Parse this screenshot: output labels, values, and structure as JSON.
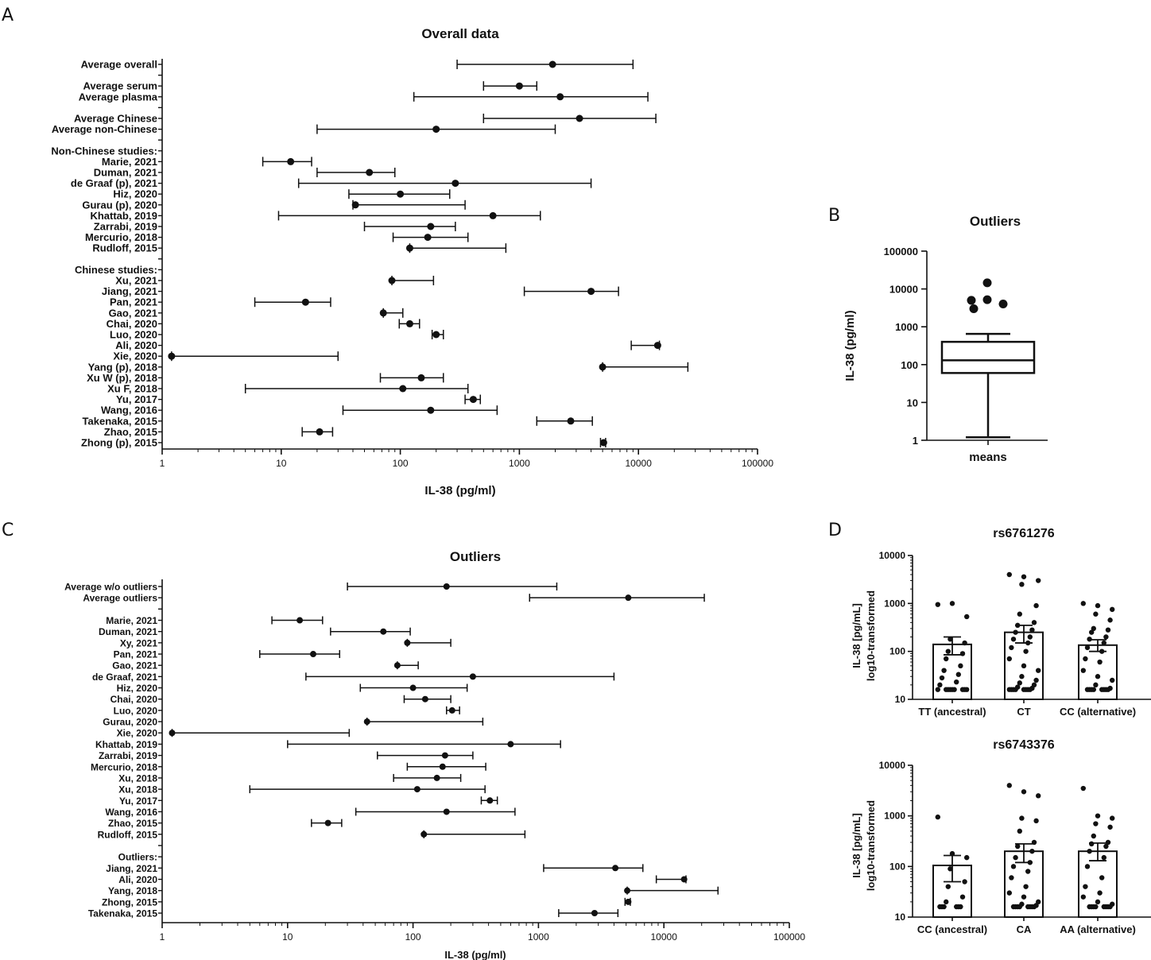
{
  "colors": {
    "ink": "#111111",
    "background": "#ffffff"
  },
  "panel_letters": [
    "A",
    "B",
    "C",
    "D"
  ],
  "chart_data": [
    {
      "id": "A",
      "type": "forest",
      "title": "Overall data",
      "xlabel": "IL-38 (pg/ml)",
      "xscale": "log",
      "xlim": [
        1,
        100000
      ],
      "xticks": [
        "1",
        "10",
        "100",
        "1000",
        "10000",
        "100000"
      ],
      "rows": [
        {
          "label": "Average overall",
          "mean": 1900,
          "lo": 300,
          "hi": 9000
        },
        {
          "label": "",
          "blank": true
        },
        {
          "label": "Average serum",
          "mean": 1000,
          "lo": 500,
          "hi": 1400
        },
        {
          "label": "Average plasma",
          "mean": 2200,
          "lo": 130,
          "hi": 12000
        },
        {
          "label": "",
          "blank": true
        },
        {
          "label": "Average Chinese",
          "mean": 3200,
          "lo": 500,
          "hi": 14000
        },
        {
          "label": "Average non-Chinese",
          "mean": 200,
          "lo": 20,
          "hi": 2000
        },
        {
          "label": "",
          "blank": true
        },
        {
          "label": "Non-Chinese studies:",
          "header": true
        },
        {
          "label": "Marie, 2021",
          "mean": 12,
          "lo": 7,
          "hi": 18
        },
        {
          "label": "Duman, 2021",
          "mean": 55,
          "lo": 20,
          "hi": 90
        },
        {
          "label": "de Graaf (p), 2021",
          "mean": 290,
          "lo": 14,
          "hi": 4000
        },
        {
          "label": "Hiz, 2020",
          "mean": 100,
          "lo": 37,
          "hi": 260
        },
        {
          "label": "Gurau (p), 2020",
          "mean": 42,
          "lo": 40,
          "hi": 350
        },
        {
          "label": "Khattab, 2019",
          "mean": 600,
          "lo": 9.5,
          "hi": 1500
        },
        {
          "label": "Zarrabi, 2019",
          "mean": 180,
          "lo": 50,
          "hi": 290
        },
        {
          "label": "Mercurio, 2018",
          "mean": 170,
          "lo": 87,
          "hi": 370
        },
        {
          "label": "Rudloff, 2015",
          "mean": 120,
          "lo": 120,
          "hi": 770
        },
        {
          "label": "",
          "blank": true
        },
        {
          "label": "Chinese studies:",
          "header": true
        },
        {
          "label": "Xu, 2021",
          "mean": 85,
          "lo": 85,
          "hi": 190
        },
        {
          "label": "Jiang, 2021",
          "mean": 4000,
          "lo": 1100,
          "hi": 6800
        },
        {
          "label": "Pan, 2021",
          "mean": 16,
          "lo": 6,
          "hi": 26
        },
        {
          "label": "Gao, 2021",
          "mean": 72,
          "lo": 72,
          "hi": 105
        },
        {
          "label": "Chai, 2020",
          "mean": 120,
          "lo": 98,
          "hi": 145
        },
        {
          "label": "Luo, 2020",
          "mean": 200,
          "lo": 185,
          "hi": 230
        },
        {
          "label": "Ali, 2020",
          "mean": 14500,
          "lo": 8700,
          "hi": 15000
        },
        {
          "label": "Xie, 2020",
          "mean": 1.2,
          "lo": 1.2,
          "hi": 30
        },
        {
          "label": "Yang (p), 2018",
          "mean": 5000,
          "lo": 5000,
          "hi": 26000
        },
        {
          "label": "Xu W (p), 2018",
          "mean": 150,
          "lo": 68,
          "hi": 230
        },
        {
          "label": "Xu F, 2018",
          "mean": 105,
          "lo": 5,
          "hi": 370
        },
        {
          "label": "Yu, 2017",
          "mean": 410,
          "lo": 350,
          "hi": 470
        },
        {
          "label": "Wang, 2016",
          "mean": 180,
          "lo": 33,
          "hi": 650
        },
        {
          "label": "Takenaka, 2015",
          "mean": 2700,
          "lo": 1400,
          "hi": 4100
        },
        {
          "label": "Zhao, 2015",
          "mean": 21,
          "lo": 15,
          "hi": 27
        },
        {
          "label": "Zhong (p), 2015",
          "mean": 5100,
          "lo": 4800,
          "hi": 5300
        }
      ]
    },
    {
      "id": "B",
      "type": "boxplot",
      "title": "Outliers",
      "ylabel": "IL-38 (pg/ml)",
      "yscale": "log",
      "ylim": [
        1,
        100000
      ],
      "yticks": [
        "1",
        "10",
        "100",
        "1000",
        "10000",
        "100000"
      ],
      "category": "means",
      "whisker_low": 1.2,
      "q1": 60,
      "median": 130,
      "q3": 400,
      "whisker_high": 650,
      "outliers": [
        5000,
        3000,
        5200,
        14500,
        4000
      ]
    },
    {
      "id": "C",
      "type": "forest",
      "title": "Outliers",
      "xlabel": "IL-38 (pg/ml)",
      "xscale": "log",
      "xlim": [
        1,
        100000
      ],
      "xticks": [
        "1",
        "10",
        "100",
        "1000",
        "10000",
        "100000"
      ],
      "rows": [
        {
          "label": "Average w/o outliers",
          "mean": 185,
          "lo": 30,
          "hi": 1400
        },
        {
          "label": "Average outliers",
          "mean": 5200,
          "lo": 850,
          "hi": 21000
        },
        {
          "label": "",
          "blank": true
        },
        {
          "label": "Marie, 2021",
          "mean": 12.5,
          "lo": 7.5,
          "hi": 19
        },
        {
          "label": "Duman, 2021",
          "mean": 58,
          "lo": 22,
          "hi": 95
        },
        {
          "label": "Xy, 2021",
          "mean": 90,
          "lo": 90,
          "hi": 200
        },
        {
          "label": "Pan, 2021",
          "mean": 16,
          "lo": 6,
          "hi": 26
        },
        {
          "label": "Gao, 2021",
          "mean": 75,
          "lo": 75,
          "hi": 110
        },
        {
          "label": "de Graaf, 2021",
          "mean": 300,
          "lo": 14,
          "hi": 4000
        },
        {
          "label": "Hiz, 2020",
          "mean": 100,
          "lo": 38,
          "hi": 270
        },
        {
          "label": "Chai, 2020",
          "mean": 125,
          "lo": 85,
          "hi": 200
        },
        {
          "label": "Luo, 2020",
          "mean": 205,
          "lo": 185,
          "hi": 235
        },
        {
          "label": "Gurau, 2020",
          "mean": 43,
          "lo": 43,
          "hi": 360
        },
        {
          "label": "Xie, 2020",
          "mean": 1.2,
          "lo": 1.2,
          "hi": 31
        },
        {
          "label": "Khattab, 2019",
          "mean": 600,
          "lo": 10,
          "hi": 1500
        },
        {
          "label": "Zarrabi, 2019",
          "mean": 180,
          "lo": 52,
          "hi": 300
        },
        {
          "label": "Mercurio, 2018",
          "mean": 172,
          "lo": 90,
          "hi": 380
        },
        {
          "label": "Xu, 2018",
          "mean": 155,
          "lo": 70,
          "hi": 240
        },
        {
          "label": "Xu, 2018",
          "mean": 108,
          "lo": 5,
          "hi": 375
        },
        {
          "label": "Yu, 2017",
          "mean": 410,
          "lo": 350,
          "hi": 470
        },
        {
          "label": "Wang, 2016",
          "mean": 185,
          "lo": 35,
          "hi": 650
        },
        {
          "label": "Zhao, 2015",
          "mean": 21,
          "lo": 15.5,
          "hi": 27
        },
        {
          "label": "Rudloff, 2015",
          "mean": 122,
          "lo": 122,
          "hi": 780
        },
        {
          "label": "",
          "blank": true
        },
        {
          "label": "Outliers:",
          "header": true
        },
        {
          "label": "Jiang, 2021",
          "mean": 4100,
          "lo": 1100,
          "hi": 6800
        },
        {
          "label": "Ali, 2020",
          "mean": 14500,
          "lo": 8700,
          "hi": 15000
        },
        {
          "label": "Yang, 2018",
          "mean": 5100,
          "lo": 5100,
          "hi": 27000
        },
        {
          "label": "Zhong, 2015",
          "mean": 5200,
          "lo": 4900,
          "hi": 5400
        },
        {
          "label": "Takenaka, 2015",
          "mean": 2800,
          "lo": 1450,
          "hi": 4300
        }
      ]
    },
    {
      "id": "D1",
      "type": "bar",
      "title": "rs6761276",
      "ylabel_line1": "IL-38 [pg/mL]",
      "ylabel_line2": "log10-transformed",
      "yscale": "log",
      "ylim": [
        10,
        10000
      ],
      "yticks": [
        "10",
        "100",
        "1000",
        "10000"
      ],
      "categories": [
        "TT (ancestral)",
        "CT",
        "CC (alternative)"
      ],
      "values": [
        140,
        250,
        135
      ],
      "sem_low": [
        85,
        150,
        100
      ],
      "sem_high": [
        200,
        350,
        175
      ],
      "points": [
        [
          950,
          1000,
          530,
          180,
          150,
          100,
          90,
          70,
          50,
          40,
          33,
          28,
          23,
          20,
          16,
          16,
          16,
          16,
          16,
          16,
          16,
          16,
          16
        ],
        [
          4000,
          3600,
          3000,
          2500,
          900,
          600,
          400,
          350,
          280,
          250,
          200,
          180,
          150,
          120,
          100,
          70,
          50,
          40,
          30,
          25,
          22,
          20,
          18,
          17,
          16,
          16,
          16,
          16,
          16,
          16,
          16,
          16
        ],
        [
          1000,
          900,
          750,
          600,
          450,
          300,
          280,
          250,
          200,
          180,
          150,
          120,
          100,
          70,
          60,
          40,
          30,
          25,
          20,
          17,
          16,
          16,
          16,
          16,
          16,
          16,
          16,
          16
        ]
      ]
    },
    {
      "id": "D2",
      "type": "bar",
      "title": "rs6743376",
      "ylabel_line1": "IL-38 [pg/mL]",
      "ylabel_line2": "log10-transformed",
      "yscale": "log",
      "ylim": [
        10,
        10000
      ],
      "yticks": [
        "10",
        "100",
        "1000",
        "10000"
      ],
      "categories": [
        "CC (ancestral)",
        "CA",
        "AA (alternative)"
      ],
      "values": [
        105,
        200,
        200
      ],
      "sem_low": [
        50,
        120,
        130
      ],
      "sem_high": [
        165,
        280,
        290
      ],
      "points": [
        [
          950,
          180,
          150,
          90,
          50,
          40,
          25,
          20,
          16,
          16,
          16,
          16,
          16,
          16
        ],
        [
          4000,
          3000,
          2500,
          900,
          800,
          500,
          300,
          250,
          200,
          150,
          120,
          100,
          80,
          60,
          40,
          30,
          25,
          20,
          18,
          17,
          16,
          16,
          16,
          16,
          16,
          16,
          16,
          16
        ],
        [
          3500,
          1000,
          900,
          700,
          600,
          400,
          300,
          280,
          250,
          200,
          150,
          100,
          60,
          40,
          30,
          25,
          20,
          18,
          16,
          16,
          16,
          16,
          16,
          16,
          16,
          16
        ]
      ]
    }
  ]
}
